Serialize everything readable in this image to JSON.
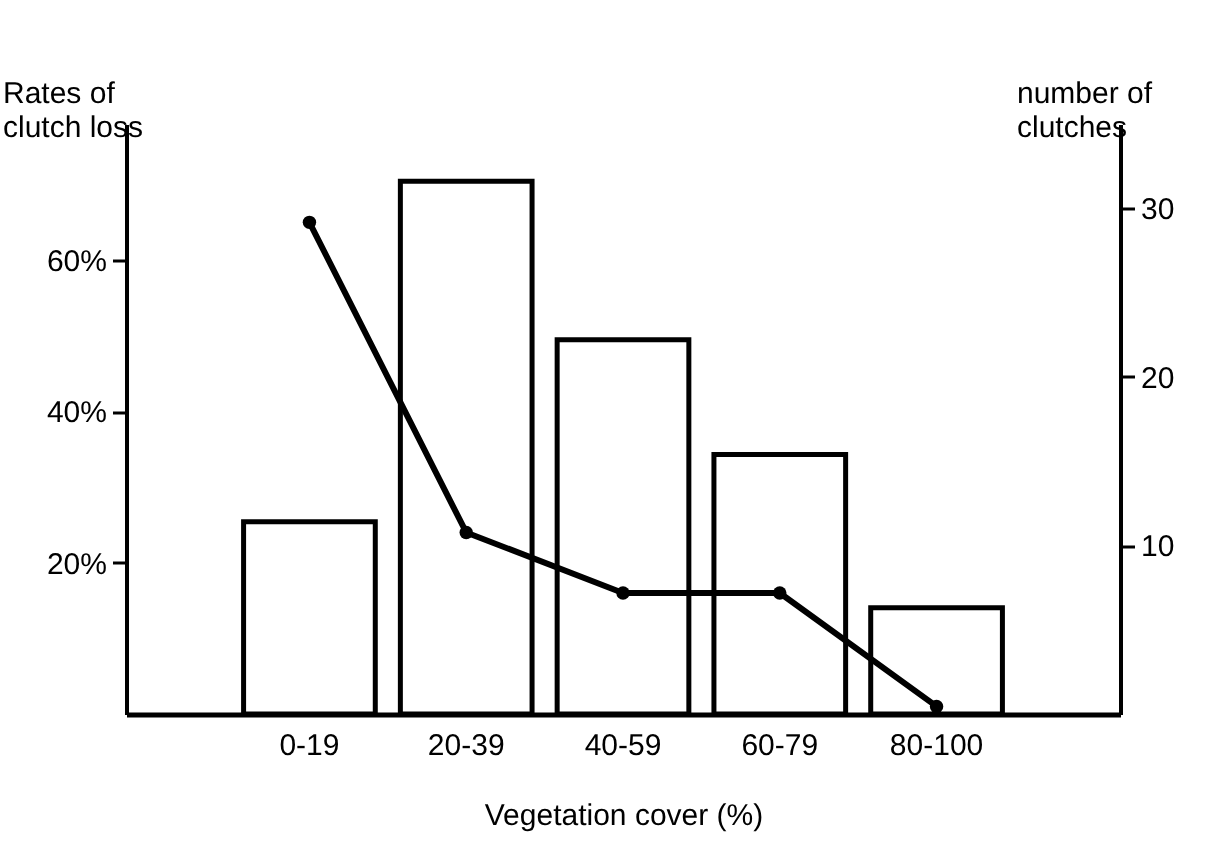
{
  "chart_data": {
    "type": "bar",
    "xlabel": "Vegetation cover (%)",
    "ylabel": "Rates of clutch loss",
    "y2label": "number of clutches",
    "categories": [
      "0-19",
      "20-39",
      "40-59",
      "60-79",
      "80-100"
    ],
    "series": [
      {
        "axis": "y2",
        "color": "#ffffff",
        "values": [
          11.4,
          31.6,
          22.2,
          15.4,
          6.3
        ]
      },
      {
        "type": "line",
        "axis": "y",
        "color": "#000000",
        "values": [
          65,
          24,
          16,
          16,
          1
        ]
      }
    ],
    "ylim": [
      0,
      78
    ],
    "yticks": [
      {
        "value": 20,
        "label": "20%"
      },
      {
        "value": 40,
        "label": "40%"
      },
      {
        "value": 60,
        "label": "60%"
      }
    ],
    "y2lim": [
      0,
      35
    ],
    "y2ticks": [
      10,
      20,
      30
    ],
    "grid": false,
    "marker": "circle",
    "line_style": "solid"
  }
}
